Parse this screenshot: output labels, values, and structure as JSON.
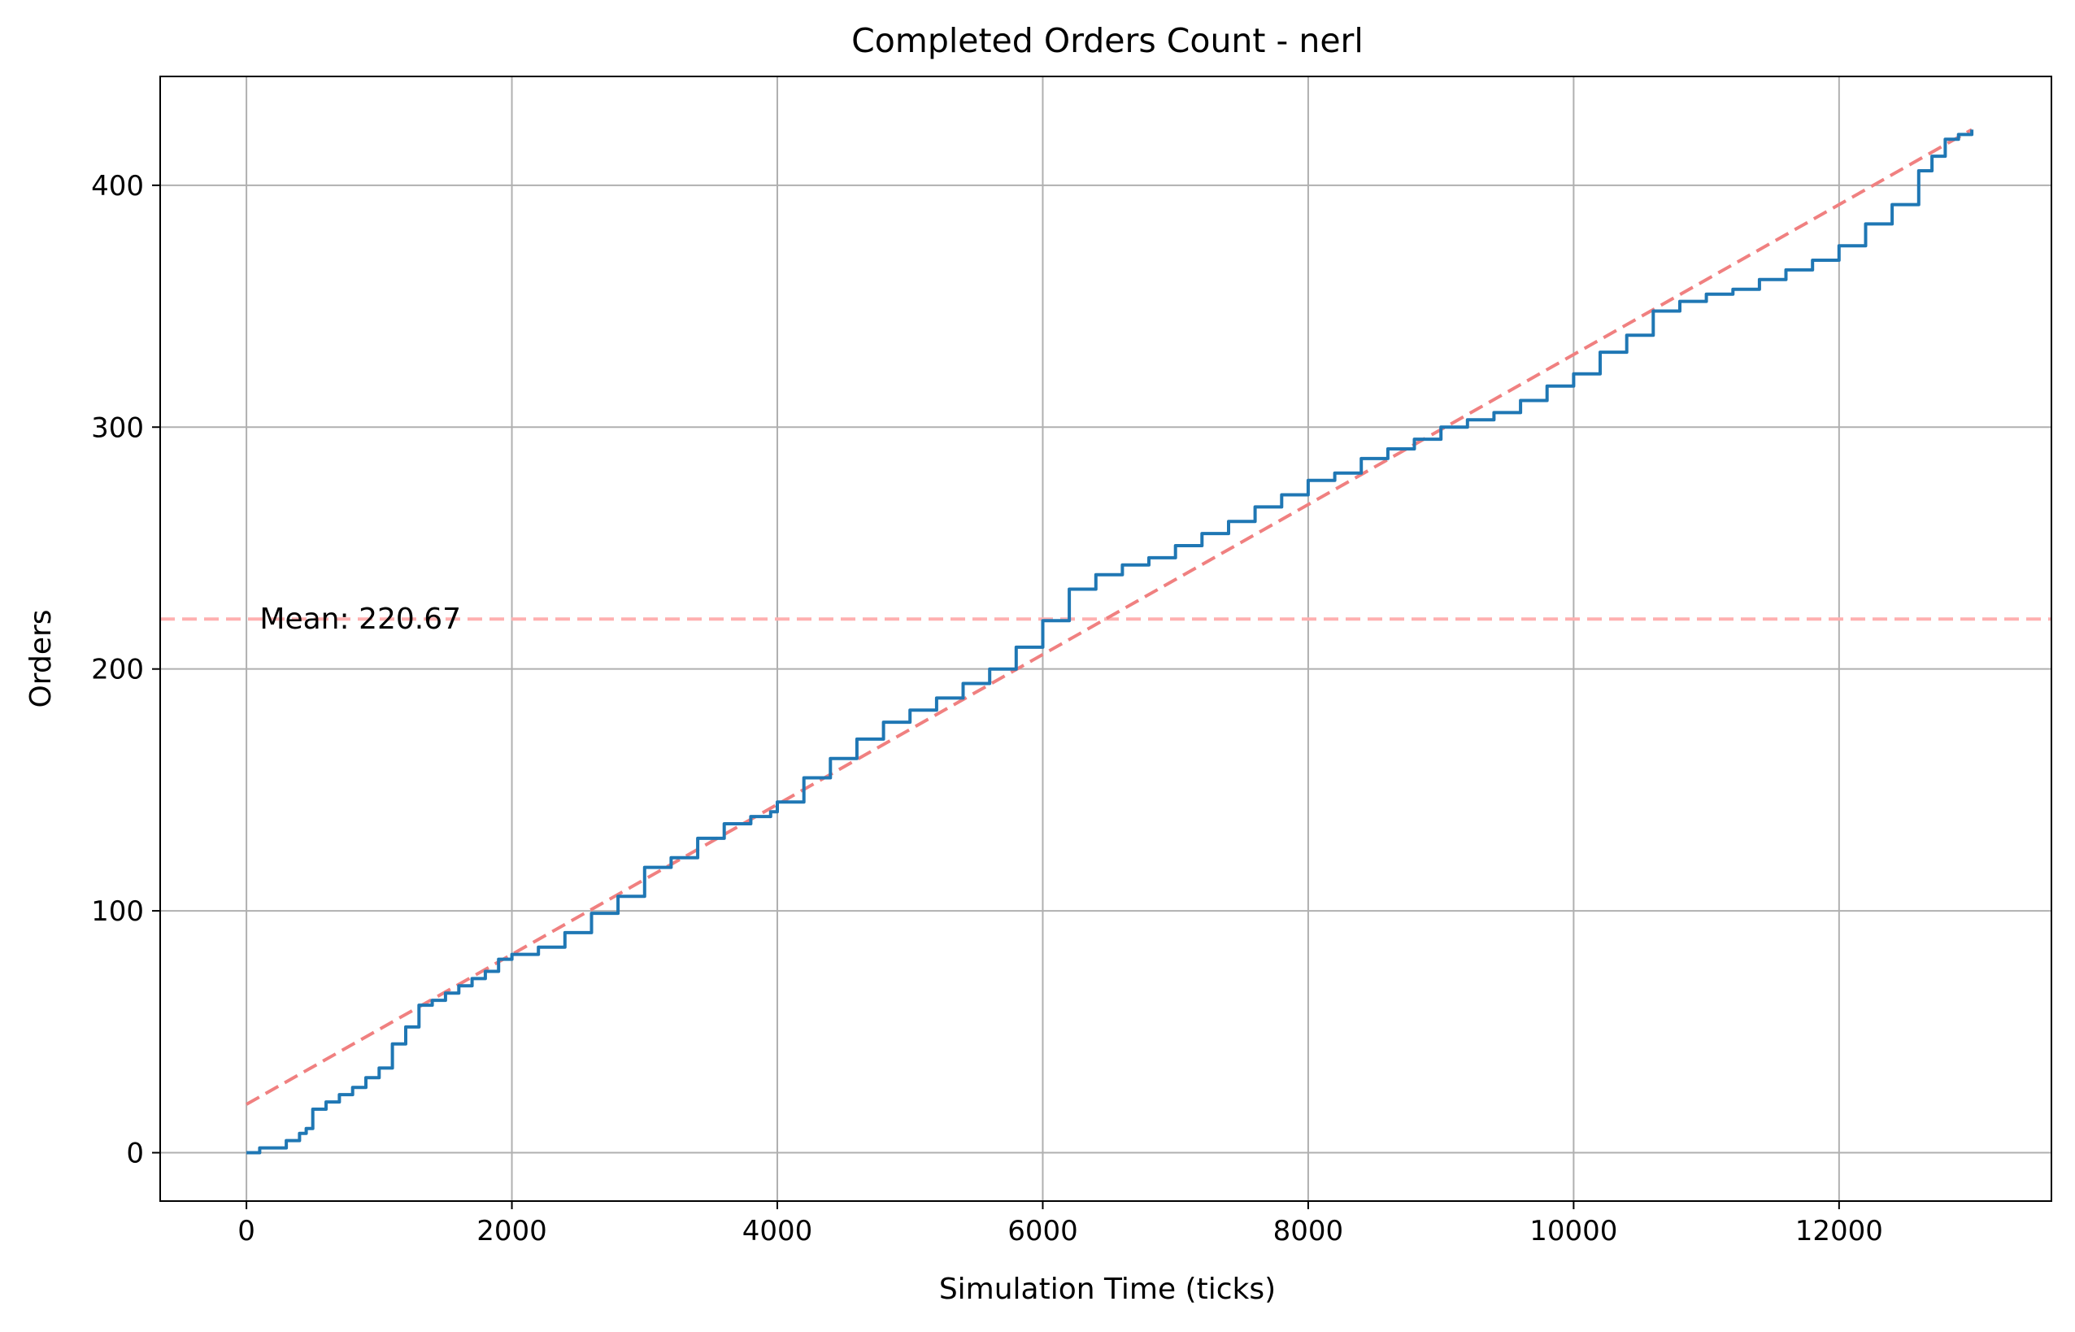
{
  "chart_data": {
    "type": "line",
    "title": "Completed Orders Count - nerl",
    "xlabel": "Simulation Time (ticks)",
    "ylabel": "Orders",
    "xlim": [
      -650,
      13600
    ],
    "ylim": [
      -20,
      445
    ],
    "x_ticks": [
      0,
      2000,
      4000,
      6000,
      8000,
      10000,
      12000
    ],
    "y_ticks": [
      0,
      100,
      200,
      300,
      400
    ],
    "grid": true,
    "colors": {
      "series": "#1f77b4",
      "trend": "#f08080",
      "mean": "#ffb0b0"
    },
    "series": [
      {
        "x": [
          0,
          100,
          200,
          300,
          400,
          450,
          500,
          600,
          700,
          800,
          900,
          1000,
          1100,
          1200,
          1300,
          1400,
          1500,
          1600,
          1700,
          1800,
          1900,
          2000,
          2200,
          2400,
          2600,
          2800,
          3000,
          3200,
          3400,
          3600,
          3800,
          3950,
          4000,
          4200,
          4400,
          4600,
          4800,
          5000,
          5200,
          5400,
          5600,
          5800,
          6000,
          6200,
          6400,
          6600,
          6800,
          7000,
          7200,
          7400,
          7600,
          7800,
          8000,
          8200,
          8400,
          8600,
          8800,
          9000,
          9200,
          9400,
          9600,
          9800,
          10000,
          10200,
          10400,
          10600,
          10800,
          11000,
          11200,
          11400,
          11600,
          11800,
          12000,
          12200,
          12400,
          12600,
          12700,
          12800,
          12900,
          13000
        ],
        "y": [
          0,
          2,
          2,
          5,
          8,
          10,
          18,
          21,
          24,
          27,
          31,
          35,
          45,
          52,
          61,
          63,
          66,
          69,
          72,
          75,
          80,
          82,
          85,
          91,
          99,
          106,
          118,
          122,
          130,
          136,
          139,
          141,
          145,
          155,
          163,
          171,
          178,
          183,
          188,
          194,
          200,
          209,
          220,
          233,
          239,
          243,
          246,
          251,
          256,
          261,
          267,
          272,
          278,
          281,
          287,
          291,
          295,
          300,
          303,
          306,
          311,
          317,
          322,
          331,
          338,
          348,
          352,
          355,
          357,
          361,
          365,
          369,
          375,
          384,
          392,
          406,
          412,
          419,
          421,
          423
        ]
      }
    ],
    "trend_line": {
      "x": [
        0,
        13000
      ],
      "y": [
        20,
        423
      ]
    },
    "mean_line": {
      "y": 220.67,
      "label": "Mean: 220.67"
    }
  }
}
